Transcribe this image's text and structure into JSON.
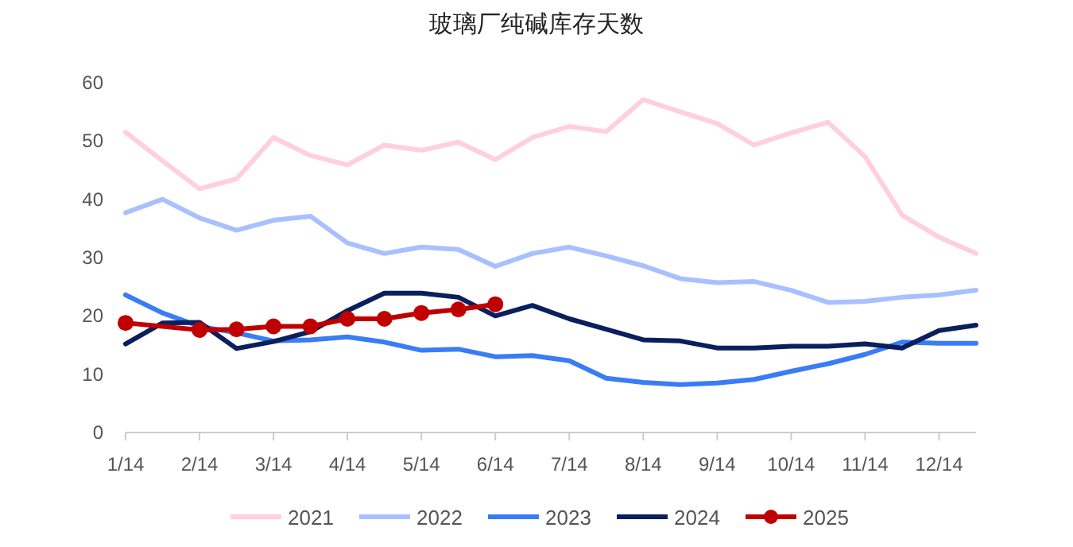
{
  "chart_data": {
    "type": "line",
    "title": "玻璃厂纯碱库存天数",
    "categories": [
      "1/14",
      null,
      "2/14",
      null,
      "3/14",
      null,
      "4/14",
      null,
      "5/14",
      null,
      "6/14",
      null,
      "7/14",
      null,
      "8/14",
      null,
      "9/14",
      null,
      "10/14",
      null,
      "11/14",
      null,
      "12/14",
      null
    ],
    "ylim": [
      0,
      60
    ],
    "yticks": [
      0,
      10,
      20,
      30,
      40,
      50,
      60
    ],
    "grid": false,
    "legend": "bottom",
    "series": [
      {
        "name": "2021",
        "color": "#ffd0dc",
        "marker": "none",
        "values": [
          51.5,
          46.6,
          41.8,
          43.5,
          50.6,
          47.5,
          45.9,
          49.3,
          48.4,
          49.8,
          46.8,
          50.6,
          52.5,
          51.6,
          57.1,
          55,
          53,
          49.3,
          51.4,
          53.2,
          47.3,
          37.3,
          33.5,
          30.7
        ]
      },
      {
        "name": "2022",
        "color": "#a9c0ff",
        "marker": "none",
        "values": [
          37.7,
          40,
          36.8,
          34.7,
          36.4,
          37.1,
          32.5,
          30.7,
          31.8,
          31.4,
          28.5,
          30.7,
          31.8,
          30.3,
          28.6,
          26.4,
          25.7,
          25.9,
          24.4,
          22.3,
          22.5,
          23.2,
          23.6,
          24.4
        ]
      },
      {
        "name": "2023",
        "color": "#3a7cf5",
        "marker": "none",
        "values": [
          23.6,
          20.5,
          18.2,
          17.1,
          15.7,
          15.9,
          16.4,
          15.5,
          14.1,
          14.3,
          13,
          13.2,
          12.3,
          9.3,
          8.6,
          8.2,
          8.5,
          9.1,
          10.5,
          11.8,
          13.4,
          15.5,
          15.3,
          15.3
        ]
      },
      {
        "name": "2024",
        "color": "#0a1f5c",
        "marker": "none",
        "values": [
          15.2,
          18.8,
          18.9,
          14.4,
          15.6,
          17.3,
          20.9,
          23.9,
          23.9,
          23.2,
          20,
          21.8,
          19.5,
          17.7,
          15.9,
          15.7,
          14.5,
          14.5,
          14.8,
          14.8,
          15.2,
          14.5,
          17.5,
          18.4
        ]
      },
      {
        "name": "2025",
        "color": "#c00000",
        "marker": "circle",
        "values": [
          18.8,
          null,
          17.6,
          17.7,
          18.2,
          18.2,
          19.5,
          19.5,
          20.5,
          21.1,
          22,
          null,
          null,
          null,
          null,
          null,
          null,
          null,
          null,
          null,
          null,
          null,
          null,
          null
        ]
      }
    ]
  }
}
